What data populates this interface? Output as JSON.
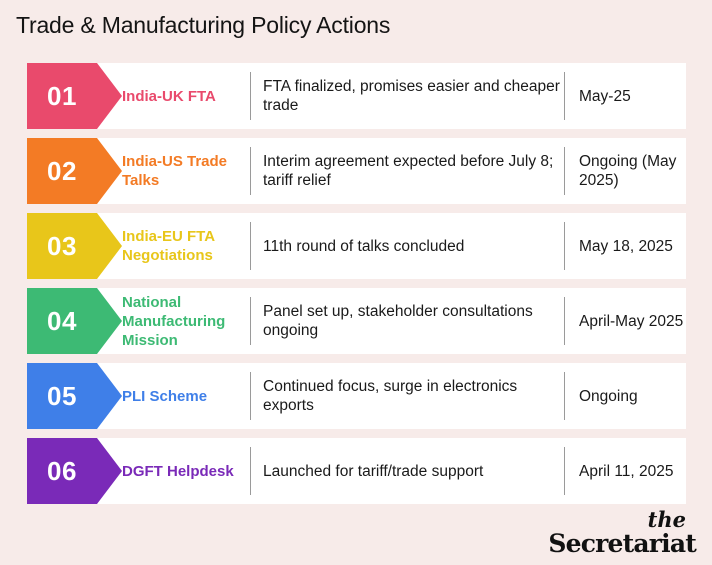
{
  "title": "Trade & Manufacturing Policy Actions",
  "rows": [
    {
      "num": "01",
      "name": "India-UK FTA",
      "desc": "FTA finalized, promises easier and cheaper trade",
      "date": "May-25",
      "color": "#e94a6c"
    },
    {
      "num": "02",
      "name": "India-US Trade Talks",
      "desc": "Interim agreement expected before July 8; tariff relief",
      "date": "Ongoing (May 2025)",
      "color": "#f37b25"
    },
    {
      "num": "03",
      "name": "India-EU FTA Negotiations",
      "desc": "11th round of talks concluded",
      "date": "May 18, 2025",
      "color": "#e8c61a"
    },
    {
      "num": "04",
      "name": "National Manufacturing Mission",
      "desc": "Panel set up, stakeholder consultations ongoing",
      "date": "April-May 2025",
      "color": "#3dba74"
    },
    {
      "num": "05",
      "name": "PLI Scheme",
      "desc": "Continued focus, surge in electronics exports",
      "date": "Ongoing",
      "color": "#3f7fe8"
    },
    {
      "num": "06",
      "name": "DGFT Helpdesk",
      "desc": "Launched for tariff/trade support",
      "date": "April 11, 2025",
      "color": "#7a2ab8"
    }
  ],
  "logo": {
    "top": "the",
    "bottom": "Secretariat"
  }
}
